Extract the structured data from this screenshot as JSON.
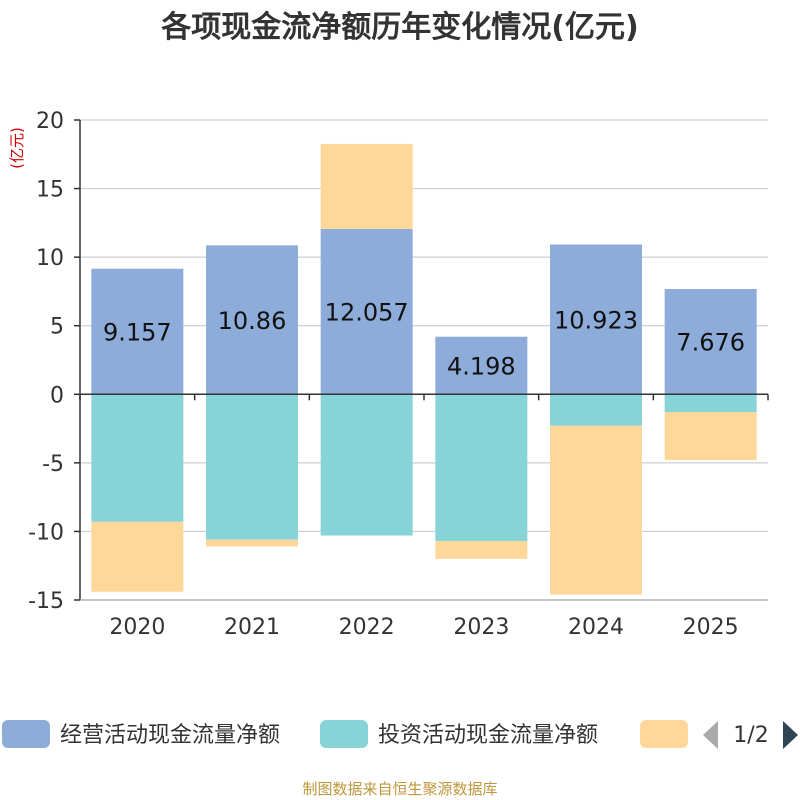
{
  "chart_data": {
    "type": "bar",
    "stacked": true,
    "title": "各项现金流净额历年变化情况(亿元)",
    "unit_label": "(亿元)",
    "categories": [
      "2020",
      "2021",
      "2022",
      "2023",
      "2024",
      "2025"
    ],
    "series": [
      {
        "name": "经营活动现金流量净额",
        "color": "#8eacd9",
        "values": [
          9.157,
          10.86,
          12.057,
          4.198,
          10.923,
          7.676
        ]
      },
      {
        "name": "投资活动现金流量净额",
        "color": "#86d4d8",
        "values": [
          -9.3,
          -10.6,
          -10.3,
          -10.7,
          -2.3,
          -1.3
        ]
      },
      {
        "color": "#ffd899",
        "values": [
          -5.1,
          -0.5,
          6.2,
          -1.3,
          -12.3,
          -3.5
        ]
      }
    ],
    "data_labels": [
      "9.157",
      "10.86",
      "12.057",
      "4.198",
      "10.923",
      "7.676"
    ],
    "yticks": [
      "20",
      "15",
      "10",
      "5",
      "0",
      "-5",
      "-10",
      "-15"
    ],
    "ylim": [
      -15,
      20
    ],
    "grid": true,
    "legend": {
      "position": "bottom",
      "page": "1/2"
    }
  },
  "footer": "制图数据来自恒生聚源数据库"
}
